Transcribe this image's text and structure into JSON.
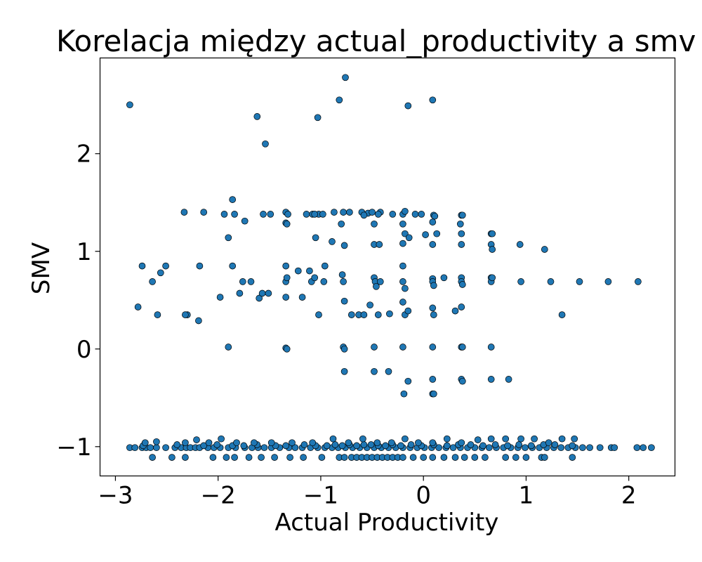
{
  "chart_data": {
    "type": "scatter",
    "title": "Korelacja między actual_productivity a smv",
    "xlabel": "Actual Productivity",
    "ylabel": "SMV",
    "xlim": [
      -3.15,
      2.45
    ],
    "ylim": [
      -1.3,
      2.98
    ],
    "xticks": [
      -3,
      -2,
      -1,
      0,
      1,
      2
    ],
    "yticks": [
      -1,
      0,
      1,
      2
    ],
    "grid": false,
    "marker_color": "#1f77b4",
    "series": [
      {
        "x": [
          -2.86,
          -1.62,
          -1.54,
          -0.76,
          -0.82,
          -1.03,
          -0.15,
          0.09,
          -1.86,
          -2.33,
          -2.14,
          -1.94,
          -1.84,
          -1.74,
          -1.56,
          -1.49,
          -1.34,
          -1.32,
          -1.14,
          -1.08,
          -1.02,
          -0.98,
          -0.87,
          -0.78,
          -0.72,
          -0.6,
          -0.54,
          -0.5,
          -0.42,
          -0.3,
          -0.2,
          -0.18,
          -0.08,
          -0.02,
          0.1,
          0.11,
          0.37,
          0.38,
          -1.34,
          -1.33,
          -1.06,
          -0.8,
          -0.58,
          -0.48,
          -0.44,
          -0.2,
          -0.18,
          0.02,
          0.09,
          0.13,
          0.36,
          0.37,
          0.66,
          0.67,
          -1.9,
          -1.05,
          -0.89,
          -0.77,
          -0.48,
          -0.43,
          -0.2,
          -0.14,
          0.09,
          0.37,
          0.66,
          0.67,
          0.94,
          1.18,
          -2.74,
          -2.51,
          -2.18,
          -1.86,
          -1.34,
          -1.22,
          -1.11,
          -0.96,
          -0.79,
          -0.48,
          -0.2,
          0.09,
          0.37,
          0.66,
          -2.64,
          -2.56,
          -1.76,
          -1.68,
          -1.34,
          -1.33,
          -1.09,
          -1.06,
          -0.97,
          -0.78,
          -0.47,
          -0.46,
          -0.42,
          -0.2,
          -0.18,
          0.09,
          0.1,
          0.2,
          0.37,
          0.38,
          0.66,
          0.67,
          0.95,
          1.24,
          1.52,
          1.8,
          2.09,
          -2.78,
          -2.3,
          -2.19,
          -1.98,
          -1.79,
          -1.6,
          -1.57,
          -1.51,
          -1.34,
          -1.18,
          -1.02,
          -0.77,
          -0.7,
          -0.63,
          -0.58,
          -0.52,
          -0.44,
          -0.33,
          -0.2,
          -0.18,
          -0.15,
          0.09,
          0.1,
          0.31,
          0.37,
          1.35,
          -2.59,
          -2.32,
          -1.9,
          -1.34,
          -1.33,
          -0.78,
          -0.77,
          -0.48,
          -0.2,
          0.09,
          0.37,
          0.38,
          0.66,
          -0.77,
          -0.48,
          -0.34,
          -0.15,
          0.09,
          0.37,
          0.38,
          0.66,
          0.83,
          -0.19,
          0.09,
          0.1,
          -2.86,
          -2.81,
          -2.74,
          -2.7,
          -2.66,
          -2.6,
          -2.51,
          -2.42,
          -2.36,
          -2.31,
          -2.27,
          -2.22,
          -2.18,
          -2.1,
          -2.04,
          -1.98,
          -1.9,
          -1.83,
          -1.74,
          -1.67,
          -1.61,
          -1.55,
          -1.48,
          -1.4,
          -1.31,
          -1.25,
          -1.18,
          -1.1,
          -1.03,
          -0.96,
          -0.89,
          -0.83,
          -0.76,
          -0.69,
          -0.62,
          -0.55,
          -0.48,
          -0.41,
          -0.34,
          -0.27,
          -0.2,
          -0.13,
          -0.06,
          0.01,
          0.08,
          0.15,
          0.22,
          0.29,
          0.36,
          0.43,
          0.5,
          0.57,
          0.64,
          0.71,
          0.78,
          0.85,
          0.92,
          0.99,
          1.06,
          1.13,
          1.2,
          1.27,
          1.34,
          1.41,
          1.48,
          1.55,
          1.62,
          1.72,
          1.83,
          1.86,
          2.08,
          2.14,
          2.22,
          -2.73,
          -2.4,
          -2.14,
          -2.01,
          -1.86,
          -1.75,
          -1.62,
          -1.44,
          -1.34,
          -1.16,
          -1.05,
          -0.94,
          -0.86,
          -0.79,
          -0.72,
          -0.65,
          -0.58,
          -0.51,
          -0.44,
          -0.37,
          -0.3,
          -0.22,
          -0.12,
          -0.02,
          0.1,
          0.23,
          0.34,
          0.46,
          0.58,
          0.7,
          0.82,
          0.93,
          1.05,
          1.17,
          1.28,
          1.45,
          -2.71,
          -2.6,
          -2.32,
          -2.21,
          -2.09,
          -1.97,
          -1.82,
          -1.65,
          -1.48,
          -1.28,
          -1.08,
          -0.88,
          -0.73,
          -0.59,
          -0.45,
          -0.31,
          -0.18,
          -0.05,
          0.09,
          0.23,
          0.37,
          0.53,
          0.66,
          0.8,
          0.95,
          1.08,
          1.22,
          1.35,
          1.47,
          -2.64,
          -2.45,
          -2.32,
          -2.05,
          -1.92,
          -1.84,
          -1.7,
          -1.58,
          -1.45,
          -1.3,
          -1.17,
          -0.99,
          -0.82,
          -0.77,
          -0.7,
          -0.65,
          -0.6,
          -0.55,
          -0.5,
          -0.45,
          -0.4,
          -0.35,
          -0.3,
          -0.25,
          -0.2,
          -0.1,
          0.0,
          0.09,
          0.2,
          0.31,
          0.4,
          0.5,
          0.6,
          0.8,
          0.9,
          1.0,
          1.15,
          1.18,
          1.45
        ],
        "y": [
          2.5,
          2.38,
          2.1,
          2.78,
          2.55,
          2.37,
          2.49,
          2.55,
          1.53,
          1.4,
          1.4,
          1.38,
          1.38,
          1.31,
          1.38,
          1.38,
          1.4,
          1.38,
          1.38,
          1.38,
          1.38,
          1.38,
          1.4,
          1.4,
          1.4,
          1.4,
          1.39,
          1.4,
          1.4,
          1.38,
          1.38,
          1.41,
          1.38,
          1.38,
          1.37,
          1.36,
          1.37,
          1.37,
          1.29,
          1.28,
          1.38,
          1.28,
          1.37,
          1.28,
          1.38,
          1.28,
          1.18,
          1.17,
          1.3,
          1.18,
          1.28,
          1.18,
          1.18,
          1.18,
          1.14,
          1.14,
          1.1,
          1.06,
          1.07,
          1.07,
          1.08,
          1.14,
          1.07,
          1.07,
          1.07,
          1.02,
          1.07,
          1.02,
          0.85,
          0.85,
          0.85,
          0.85,
          0.85,
          0.8,
          0.8,
          0.85,
          0.76,
          0.73,
          0.85,
          0.72,
          0.73,
          0.73,
          0.69,
          0.78,
          0.69,
          0.69,
          0.69,
          0.73,
          0.69,
          0.73,
          0.69,
          0.69,
          0.69,
          0.64,
          0.69,
          0.69,
          0.62,
          0.69,
          0.65,
          0.73,
          0.69,
          0.66,
          0.69,
          0.73,
          0.69,
          0.69,
          0.69,
          0.69,
          0.69,
          0.43,
          0.35,
          0.29,
          0.53,
          0.57,
          0.52,
          0.57,
          0.57,
          0.53,
          0.53,
          0.35,
          0.49,
          0.35,
          0.35,
          0.35,
          0.45,
          0.35,
          0.36,
          0.48,
          0.35,
          0.39,
          0.42,
          0.35,
          0.39,
          0.43,
          0.35,
          0.35,
          0.35,
          0.02,
          0.01,
          0.0,
          0.02,
          0.0,
          0.02,
          0.02,
          0.02,
          0.02,
          0.02,
          0.02,
          -0.23,
          -0.23,
          -0.23,
          -0.33,
          -0.31,
          -0.31,
          -0.33,
          -0.31,
          -0.31,
          -0.46,
          -0.46,
          -0.46,
          -1.01,
          -1.01,
          -1.01,
          -1.01,
          -1.01,
          -1.01,
          -1.01,
          -1.01,
          -1.01,
          -1.01,
          -1.01,
          -1.01,
          -1.01,
          -1.01,
          -1.01,
          -1.01,
          -1.01,
          -1.01,
          -1.01,
          -1.01,
          -1.01,
          -1.01,
          -1.01,
          -1.01,
          -1.01,
          -1.01,
          -1.01,
          -1.01,
          -1.01,
          -1.01,
          -1.01,
          -1.01,
          -1.01,
          -1.01,
          -1.01,
          -1.01,
          -1.01,
          -1.01,
          -1.01,
          -1.01,
          -1.01,
          -1.01,
          -1.01,
          -1.01,
          -1.01,
          -1.01,
          -1.01,
          -1.01,
          -1.01,
          -1.01,
          -1.01,
          -1.01,
          -1.01,
          -1.01,
          -1.01,
          -1.01,
          -1.01,
          -1.01,
          -1.01,
          -1.01,
          -1.01,
          -1.01,
          -1.01,
          -1.01,
          -1.01,
          -1.01,
          -1.01,
          -1.01,
          -1.01,
          -1.01,
          -1.01,
          -1.01,
          -1.01,
          -0.99,
          -0.98,
          -0.99,
          -0.98,
          -0.99,
          -0.99,
          -0.98,
          -0.99,
          -0.99,
          -0.98,
          -0.99,
          -0.99,
          -0.98,
          -0.99,
          -0.98,
          -0.99,
          -0.98,
          -0.98,
          -0.99,
          -0.99,
          -0.98,
          -0.99,
          -0.98,
          -0.99,
          -0.98,
          -0.99,
          -0.98,
          -0.98,
          -0.99,
          -0.98,
          -0.99,
          -0.98,
          -0.99,
          -0.98,
          -0.98,
          -0.99,
          -0.96,
          -0.95,
          -0.96,
          -0.93,
          -0.96,
          -0.92,
          -0.96,
          -0.96,
          -0.96,
          -0.96,
          -0.96,
          -0.92,
          -0.96,
          -0.92,
          -0.96,
          -0.96,
          -0.92,
          -0.96,
          -0.96,
          -0.92,
          -0.96,
          -0.93,
          -0.92,
          -0.92,
          -0.92,
          -0.92,
          -0.96,
          -0.92,
          -0.92,
          -1.11,
          -1.11,
          -1.11,
          -1.11,
          -1.11,
          -1.11,
          -1.11,
          -1.11,
          -1.11,
          -1.11,
          -1.11,
          -1.11,
          -1.11,
          -1.11,
          -1.11,
          -1.11,
          -1.11,
          -1.11,
          -1.11,
          -1.11,
          -1.11,
          -1.11,
          -1.11,
          -1.11,
          -1.11,
          -1.11,
          -1.11,
          -1.11,
          -1.11,
          -1.11,
          -1.11,
          -1.11,
          -1.11,
          -1.11,
          -1.11,
          -1.11,
          -1.11,
          -1.11,
          -1.11
        ]
      }
    ]
  }
}
